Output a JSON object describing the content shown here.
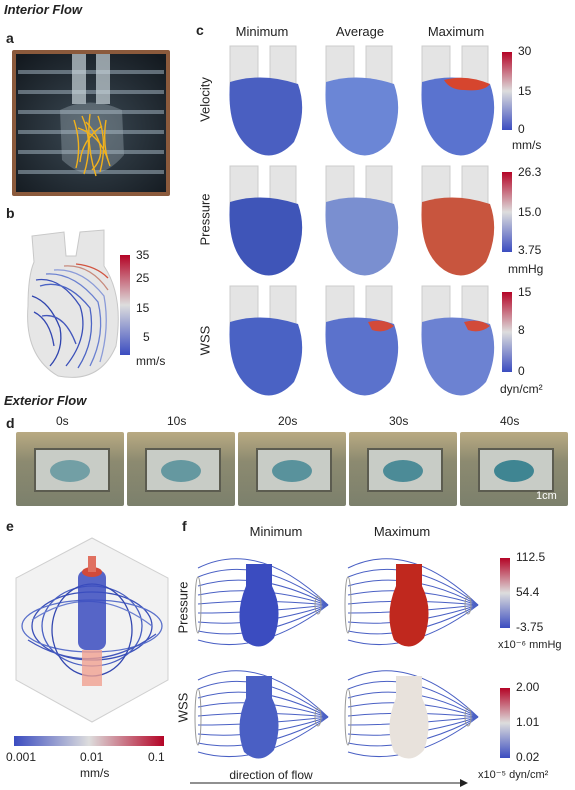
{
  "interior_title": "Interior Flow",
  "exterior_title": "Exterior Flow",
  "panels": {
    "a": "a",
    "b": "b",
    "c": "c",
    "d": "d",
    "e": "e",
    "f": "f"
  },
  "c": {
    "columns": [
      "Minimum",
      "Average",
      "Maximum"
    ],
    "rows": [
      {
        "label": "Velocity",
        "ticks": [
          "30",
          "15",
          "0"
        ],
        "unit": "mm/s",
        "colors": {
          "min": "#4a5fc1",
          "avg": "#6b86d6",
          "max": "#5a73cf",
          "hot": "#d6452e"
        }
      },
      {
        "label": "Pressure",
        "ticks": [
          "26.3",
          "15.0",
          "3.75"
        ],
        "unit": "mmHg",
        "colors": {
          "min": "#3f55b8",
          "avg": "#7a8fd0",
          "max": "#c8553e"
        }
      },
      {
        "label": "WSS",
        "ticks": [
          "15",
          "8",
          "0"
        ],
        "unit": "dyn/cm²",
        "colors": {
          "min": "#4a62c4",
          "avg": "#5b72cc",
          "max": "#6c82d2"
        }
      }
    ]
  },
  "b": {
    "ticks": [
      "35",
      "25",
      "15",
      "5"
    ],
    "unit": "mm/s"
  },
  "d": {
    "times": [
      "0s",
      "10s",
      "20s",
      "30s",
      "40s"
    ],
    "scale_bar": "1cm"
  },
  "e": {
    "ticks": [
      "0.001",
      "0.01",
      "0.1"
    ],
    "unit": "mm/s"
  },
  "f": {
    "columns": [
      "Minimum",
      "Maximum"
    ],
    "rows": [
      {
        "label": "Pressure",
        "ticks": [
          "112.5",
          "54.4",
          "-3.75"
        ],
        "unit": "x10⁻⁶ mmHg"
      },
      {
        "label": "WSS",
        "ticks": [
          "2.00",
          "1.01",
          "0.02"
        ],
        "unit": "x10⁻⁵ dyn/cm²"
      }
    ],
    "flow_label": "direction of flow"
  },
  "colors": {
    "cold": "#3b4cc0",
    "mid": "#dddddd",
    "hot": "#b40426",
    "streak": "#f2b21c"
  }
}
